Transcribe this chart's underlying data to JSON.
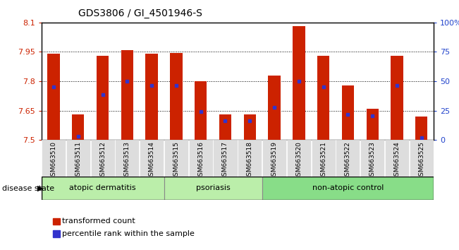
{
  "title": "GDS3806 / GI_4501946-S",
  "samples": [
    "GSM663510",
    "GSM663511",
    "GSM663512",
    "GSM663513",
    "GSM663514",
    "GSM663515",
    "GSM663516",
    "GSM663517",
    "GSM663518",
    "GSM663519",
    "GSM663520",
    "GSM663521",
    "GSM663522",
    "GSM663523",
    "GSM663524",
    "GSM663525"
  ],
  "bar_tops": [
    7.94,
    7.63,
    7.93,
    7.96,
    7.94,
    7.945,
    7.8,
    7.63,
    7.63,
    7.83,
    8.08,
    7.93,
    7.78,
    7.66,
    7.93,
    7.62
  ],
  "blue_markers": [
    7.77,
    7.52,
    7.73,
    7.8,
    7.78,
    7.78,
    7.645,
    7.6,
    7.6,
    7.665,
    7.8,
    7.77,
    7.63,
    7.625,
    7.78,
    7.51
  ],
  "bar_base": 7.5,
  "ylim_left": [
    7.5,
    8.1
  ],
  "ylim_right": [
    0,
    100
  ],
  "yticks_left": [
    7.5,
    7.65,
    7.8,
    7.95,
    8.1
  ],
  "ytick_labels_left": [
    "7.5",
    "7.65",
    "7.8",
    "7.95",
    "8.1"
  ],
  "yticks_right": [
    0,
    25,
    50,
    75,
    100
  ],
  "ytick_labels_right": [
    "0",
    "25",
    "50",
    "75",
    "100%"
  ],
  "bar_color": "#cc2200",
  "blue_color": "#3333cc",
  "group_ranges": [
    [
      0,
      4,
      "atopic dermatitis"
    ],
    [
      5,
      8,
      "psoriasis"
    ],
    [
      9,
      15,
      "non-atopic control"
    ]
  ],
  "group_colors": [
    "#bbeeaa",
    "#bbeeaa",
    "#88dd88"
  ],
  "disease_state_label": "disease state",
  "legend_items": [
    {
      "label": "transformed count",
      "color": "#cc2200"
    },
    {
      "label": "percentile rank within the sample",
      "color": "#3333cc"
    }
  ],
  "background_color": "#ffffff",
  "tick_color_left": "#cc2200",
  "tick_color_right": "#2244cc",
  "xticklabel_bg": "#dddddd"
}
